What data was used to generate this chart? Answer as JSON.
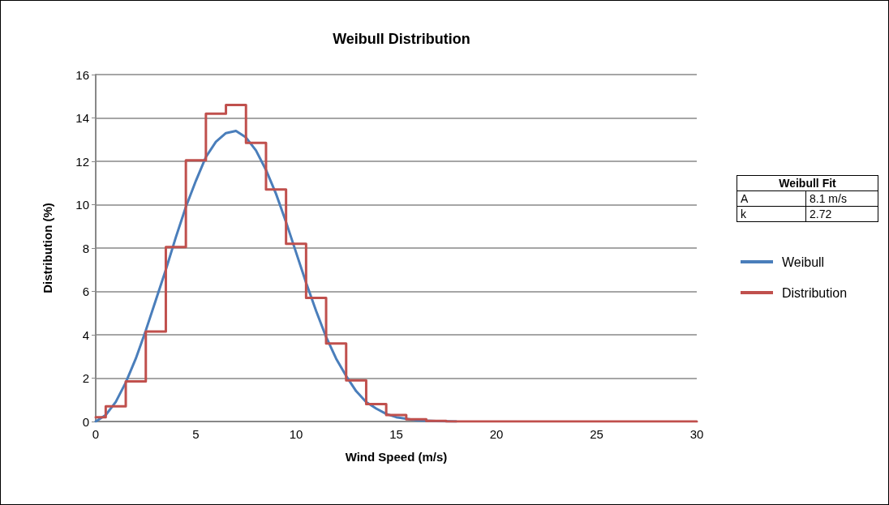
{
  "chart_data": {
    "type": "line",
    "title": "Weibull Distribution",
    "xlabel": "Wind Speed (m/s)",
    "ylabel": "Distribution (%)",
    "xlim": [
      0,
      30
    ],
    "xticks": [
      0,
      5,
      10,
      15,
      20,
      25,
      30
    ],
    "ylim": [
      0,
      16
    ],
    "yticks": [
      0,
      2,
      4,
      6,
      8,
      10,
      12,
      14,
      16
    ],
    "grid": "y",
    "legend": "right",
    "marker": "none",
    "line_style": "solid",
    "annotations": [
      "Weibull Fit",
      "A",
      "8.1 m/s",
      "k",
      "2.72"
    ],
    "series": [
      {
        "name": "Weibull",
        "color": "#4a7ebb",
        "x": [
          0,
          0.5,
          1,
          1.5,
          2,
          2.5,
          3,
          3.5,
          4,
          4.5,
          5,
          5.5,
          6,
          6.5,
          7,
          7.5,
          8,
          8.5,
          9,
          9.5,
          10,
          10.5,
          11,
          11.5,
          12,
          12.5,
          13,
          13.5,
          14,
          14.5,
          15,
          16,
          17,
          18
        ],
        "values": [
          0,
          0.3,
          0.9,
          1.8,
          2.9,
          4.2,
          5.6,
          7.0,
          8.5,
          9.9,
          11.1,
          12.2,
          12.9,
          13.3,
          13.4,
          13.1,
          12.5,
          11.6,
          10.5,
          9.2,
          7.8,
          6.4,
          5.1,
          3.9,
          2.9,
          2.1,
          1.4,
          0.9,
          0.6,
          0.35,
          0.2,
          0.06,
          0.02,
          0
        ]
      },
      {
        "name": "Distribution",
        "type": "step",
        "color": "#c0504d",
        "x": [
          0,
          0.5,
          1.5,
          2.5,
          3.5,
          4.5,
          5.5,
          6.5,
          7.5,
          8.5,
          9.5,
          10.5,
          11.5,
          12.5,
          13.5,
          14.5,
          15.5,
          16.5,
          17.5,
          30
        ],
        "values": [
          0.2,
          0.7,
          1.85,
          4.15,
          8.05,
          12.05,
          14.2,
          14.6,
          12.85,
          10.7,
          8.2,
          5.7,
          3.6,
          1.9,
          0.8,
          0.3,
          0.1,
          0.03,
          0,
          0
        ]
      }
    ]
  }
}
